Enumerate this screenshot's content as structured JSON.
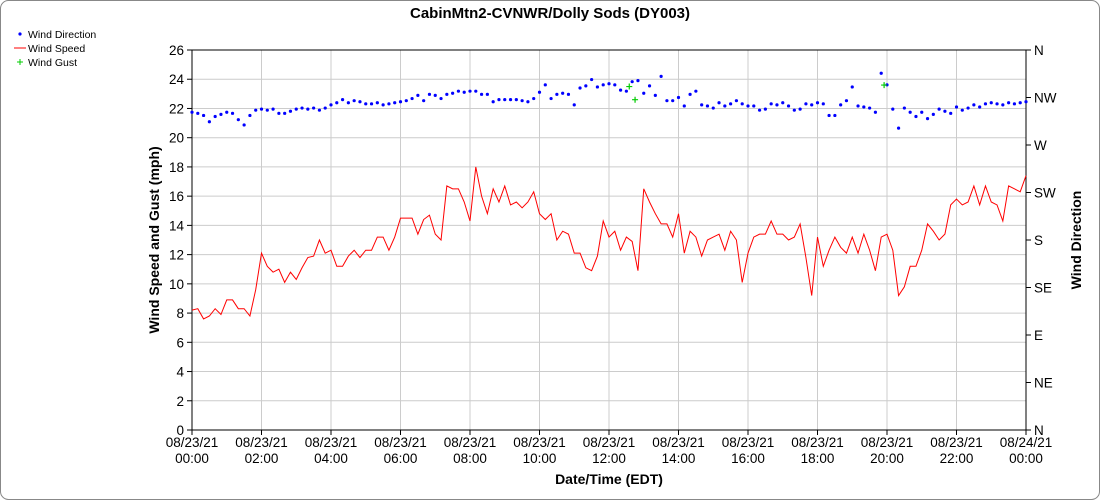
{
  "chart_data": {
    "type": "line",
    "title": "CabinMtn2-CVNWR/Dolly Sods (DY003)",
    "x_label": "Date/Time (EDT)",
    "y_label": "Wind Speed and Gust (mph)",
    "y2_label": "Wind Direction",
    "x": [
      0,
      10,
      20,
      30,
      40,
      50,
      60,
      70,
      80,
      90,
      100,
      110,
      120,
      130,
      140,
      150,
      160,
      170,
      180,
      190,
      200,
      210,
      220,
      230,
      240,
      250,
      260,
      270,
      280,
      290,
      300,
      310,
      320,
      330,
      340,
      350,
      360,
      370,
      380,
      390,
      400,
      410,
      420,
      430,
      440,
      450,
      460,
      470,
      480,
      490,
      500,
      510,
      520,
      530,
      540,
      550,
      560,
      570,
      580,
      590,
      600,
      610,
      620,
      630,
      640,
      650,
      660,
      670,
      680,
      690,
      700,
      710,
      720,
      730,
      740,
      750,
      760,
      770,
      780,
      790,
      800,
      810,
      820,
      830,
      840,
      850,
      860,
      870,
      880,
      890,
      900,
      910,
      920,
      930,
      940,
      950,
      960,
      970,
      980,
      990,
      1000,
      1010,
      1020,
      1030,
      1040,
      1050,
      1060,
      1070,
      1080,
      1090,
      1100,
      1110,
      1120,
      1130,
      1140,
      1150,
      1160,
      1170,
      1180,
      1190,
      1200,
      1210,
      1220,
      1230,
      1240,
      1250,
      1260,
      1270,
      1280,
      1290,
      1300,
      1310,
      1320,
      1330,
      1340,
      1350,
      1360,
      1370,
      1380,
      1390,
      1400,
      1410,
      1420,
      1430,
      1440
    ],
    "series": [
      {
        "name": "Wind Direction",
        "type": "scatter",
        "color": "#0000ff",
        "axis": "y2",
        "values": [
          301,
          300,
          298,
          292,
          297,
          299,
          301,
          300,
          294,
          289,
          298,
          303,
          304,
          303,
          304,
          300,
          300,
          302,
          304,
          305,
          304,
          305,
          303,
          305,
          308,
          310,
          313,
          310,
          312,
          311,
          309,
          309,
          310,
          308,
          309,
          310,
          311,
          312,
          314,
          317,
          312,
          318,
          317,
          314,
          318,
          319,
          321,
          320,
          321,
          321,
          318,
          318,
          311,
          313,
          313,
          313,
          313,
          312,
          311,
          314,
          320,
          327,
          314,
          318,
          319,
          318,
          308,
          324,
          326,
          332,
          325,
          327,
          328,
          327,
          322,
          321,
          330,
          331,
          319,
          326,
          317,
          335,
          312,
          312,
          315,
          307,
          318,
          321,
          308,
          307,
          305,
          310,
          307,
          309,
          312,
          309,
          307,
          307,
          303,
          304,
          309,
          308,
          310,
          307,
          303,
          304,
          309,
          308,
          310,
          309,
          298,
          298,
          308,
          312,
          325,
          307,
          306,
          305,
          301,
          338,
          327,
          304,
          286,
          305,
          301,
          297,
          301,
          295,
          299,
          304,
          302,
          300,
          306,
          303,
          305,
          308,
          306,
          309,
          310,
          309,
          308,
          310,
          309,
          310,
          311
        ]
      },
      {
        "name": "Wind Speed",
        "type": "line",
        "color": "#ff0000",
        "values": [
          8.2,
          8.3,
          7.6,
          7.8,
          8.3,
          7.9,
          8.9,
          8.9,
          8.3,
          8.3,
          7.8,
          9.6,
          12.1,
          11.2,
          10.8,
          11.0,
          10.1,
          10.8,
          10.3,
          11.1,
          11.8,
          11.9,
          13.0,
          12.1,
          12.3,
          11.2,
          11.2,
          11.9,
          12.3,
          11.8,
          12.3,
          12.3,
          13.2,
          13.2,
          12.3,
          13.2,
          14.5,
          14.5,
          14.5,
          13.4,
          14.4,
          14.7,
          13.4,
          13.0,
          16.7,
          16.5,
          16.5,
          15.6,
          14.3,
          18.0,
          16.0,
          14.8,
          16.5,
          15.6,
          16.7,
          15.4,
          15.6,
          15.2,
          15.6,
          16.3,
          14.8,
          14.4,
          14.8,
          13.0,
          13.6,
          13.4,
          12.1,
          12.1,
          11.1,
          10.9,
          11.9,
          14.3,
          13.2,
          13.6,
          12.3,
          13.2,
          12.9,
          10.9,
          16.5,
          15.6,
          14.8,
          14.1,
          14.1,
          13.2,
          14.8,
          12.1,
          13.6,
          13.2,
          11.9,
          13.0,
          13.2,
          13.4,
          12.3,
          13.6,
          13.0,
          10.1,
          12.1,
          13.2,
          13.4,
          13.4,
          14.3,
          13.4,
          13.4,
          13.0,
          13.2,
          14.1,
          11.8,
          9.2,
          13.2,
          11.2,
          12.3,
          13.2,
          12.5,
          12.1,
          13.2,
          12.1,
          13.4,
          12.3,
          10.9,
          13.2,
          13.4,
          12.3,
          9.2,
          9.8,
          11.2,
          11.2,
          12.3,
          14.1,
          13.6,
          13.0,
          13.4,
          15.4,
          15.8,
          15.4,
          15.6,
          16.7,
          15.4,
          16.7,
          15.6,
          15.4,
          14.3,
          16.7,
          16.5,
          16.3,
          17.4
        ]
      },
      {
        "name": "Wind Gust",
        "type": "plus",
        "color": "#00cc00",
        "x": [
          755,
          765,
          1195
        ],
        "values": [
          23.5,
          22.6,
          23.6
        ]
      }
    ],
    "xlim": [
      0,
      1440
    ],
    "xticks": [
      {
        "value": 0,
        "label": "08/23/21 00:00"
      },
      {
        "value": 120,
        "label": "08/23/21 02:00"
      },
      {
        "value": 240,
        "label": "08/23/21 04:00"
      },
      {
        "value": 360,
        "label": "08/23/21 06:00"
      },
      {
        "value": 480,
        "label": "08/23/21 08:00"
      },
      {
        "value": 600,
        "label": "08/23/21 10:00"
      },
      {
        "value": 720,
        "label": "08/23/21 12:00"
      },
      {
        "value": 840,
        "label": "08/23/21 14:00"
      },
      {
        "value": 960,
        "label": "08/23/21 16:00"
      },
      {
        "value": 1080,
        "label": "08/23/21 18:00"
      },
      {
        "value": 1200,
        "label": "08/23/21 20:00"
      },
      {
        "value": 1320,
        "label": "08/23/21 22:00"
      },
      {
        "value": 1440,
        "label": "08/24/21 00:00"
      }
    ],
    "ylim": [
      0,
      26
    ],
    "yticks": [
      0,
      2,
      4,
      6,
      8,
      10,
      12,
      14,
      16,
      18,
      20,
      22,
      24,
      26
    ],
    "y2lim": [
      0,
      360
    ],
    "y2ticks": [
      {
        "value": 0,
        "label": "N"
      },
      {
        "value": 45,
        "label": "NE"
      },
      {
        "value": 90,
        "label": "E"
      },
      {
        "value": 135,
        "label": "SE"
      },
      {
        "value": 180,
        "label": "S"
      },
      {
        "value": 225,
        "label": "SW"
      },
      {
        "value": 270,
        "label": "W"
      },
      {
        "value": 315,
        "label": "NW"
      },
      {
        "value": 360,
        "label": "N"
      }
    ],
    "grid": true,
    "legend": "top-left"
  }
}
